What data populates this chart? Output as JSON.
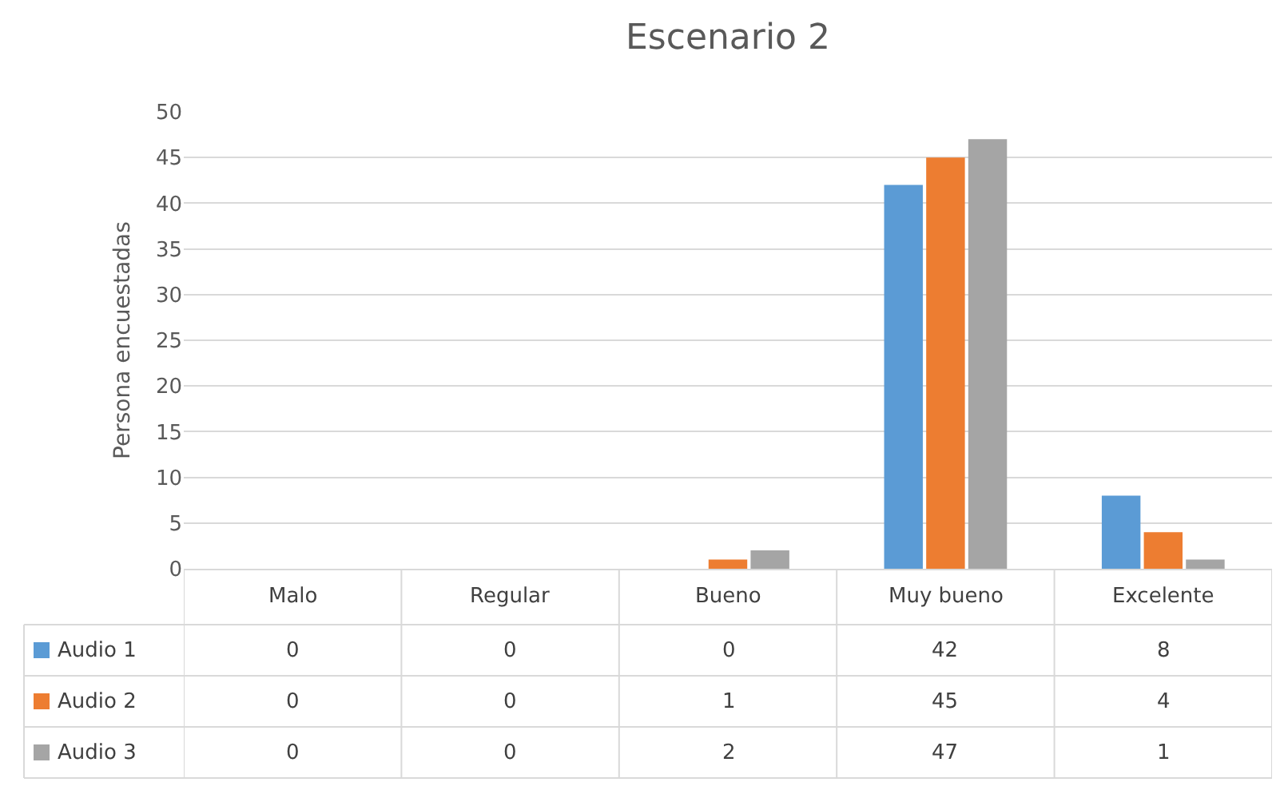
{
  "chart_data": {
    "type": "bar",
    "title": "Escenario 2",
    "ylabel": "Persona encuestadas",
    "categories": [
      "Malo",
      "Regular",
      "Bueno",
      "Muy bueno",
      "Excelente"
    ],
    "series": [
      {
        "name": "Audio 1",
        "color": "#5b9bd5",
        "values": [
          0,
          0,
          0,
          42,
          8
        ]
      },
      {
        "name": "Audio 2",
        "color": "#ed7d31",
        "values": [
          0,
          0,
          1,
          45,
          4
        ]
      },
      {
        "name": "Audio 3",
        "color": "#a5a5a5",
        "values": [
          0,
          0,
          2,
          47,
          1
        ]
      }
    ],
    "ylim": [
      0,
      50
    ],
    "yticks": [
      0,
      5,
      10,
      15,
      20,
      25,
      30,
      35,
      40,
      45,
      50
    ],
    "grid": "y",
    "legend": "bottom left",
    "data_labels": true
  }
}
